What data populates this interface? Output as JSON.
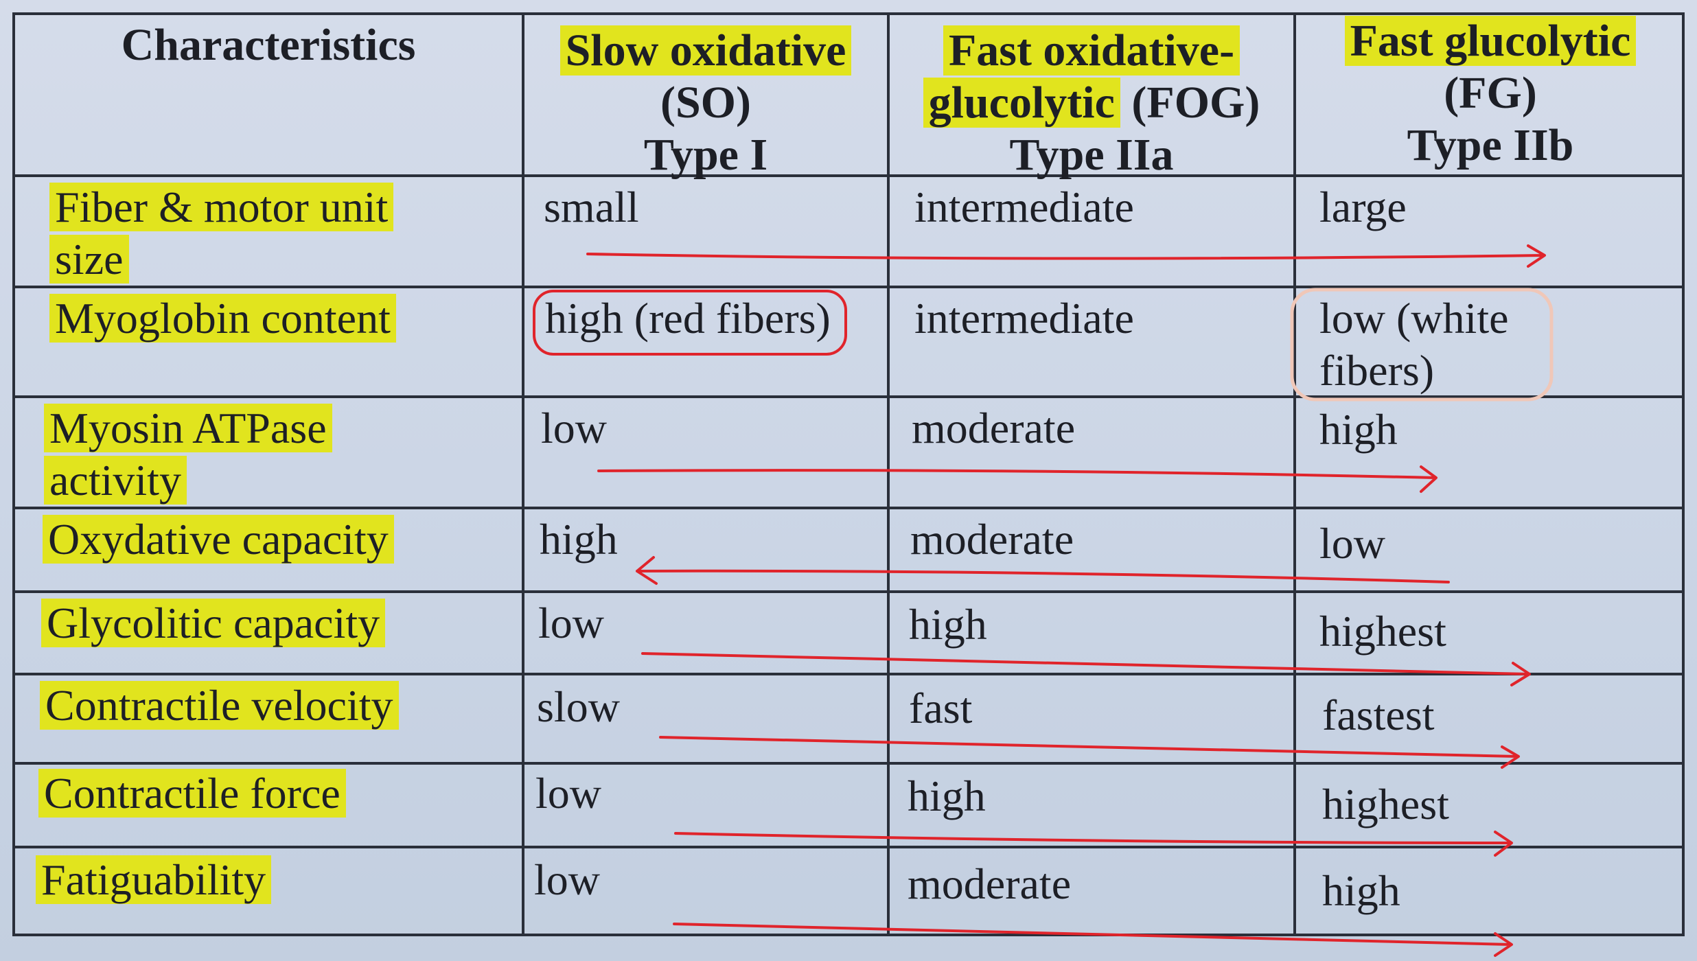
{
  "table": {
    "headers": {
      "characteristics": "Characteristics",
      "so": [
        "Slow oxidative",
        "(SO)",
        "Type I"
      ],
      "fog": [
        "Fast oxidative-",
        "glucolytic",
        " (FOG)",
        "Type IIa"
      ],
      "fg": [
        "Fast glucolytic",
        "(FG)",
        "Type IIb"
      ]
    },
    "rows": [
      {
        "label": [
          "Fiber & motor unit",
          "size"
        ],
        "so": "small",
        "fog": "intermediate",
        "fg": [
          "large"
        ]
      },
      {
        "label": [
          "Myoglobin content"
        ],
        "so": "high (red fibers)",
        "fog": "intermediate",
        "fg": [
          "low (white",
          "fibers)"
        ]
      },
      {
        "label": [
          "Myosin ATPase",
          "activity"
        ],
        "so": "low",
        "fog": "moderate",
        "fg": [
          "high"
        ]
      },
      {
        "label": [
          "Oxydative capacity"
        ],
        "so": "high",
        "fog": "moderate",
        "fg": [
          "low"
        ]
      },
      {
        "label": [
          "Glycolitic capacity"
        ],
        "so": "low",
        "fog": "high",
        "fg": [
          "highest"
        ]
      },
      {
        "label": [
          "Contractile velocity"
        ],
        "so": "slow",
        "fog": "fast",
        "fg": [
          "fastest"
        ]
      },
      {
        "label": [
          "Contractile force"
        ],
        "so": "low",
        "fog": "high",
        "fg": [
          "highest"
        ]
      },
      {
        "label": [
          "Fatiguability"
        ],
        "so": "low",
        "fog": "moderate",
        "fg": [
          "high"
        ]
      }
    ]
  },
  "annotations": {
    "highlight_color": "#e1e41e",
    "pen_color": "#e0242b",
    "circle_light_color": "#f0c7b8",
    "arrows": [
      {
        "row": "Fiber & motor unit size",
        "direction": "right"
      },
      {
        "row": "Myosin ATPase activity",
        "direction": "right"
      },
      {
        "row": "Oxydative capacity",
        "direction": "left"
      },
      {
        "row": "Glycolitic capacity",
        "direction": "right"
      },
      {
        "row": "Contractile velocity",
        "direction": "right"
      },
      {
        "row": "Contractile force",
        "direction": "right"
      },
      {
        "row": "Fatiguability",
        "direction": "right"
      }
    ],
    "circled": [
      "high (red fibers)",
      "low (white fibers)"
    ]
  }
}
